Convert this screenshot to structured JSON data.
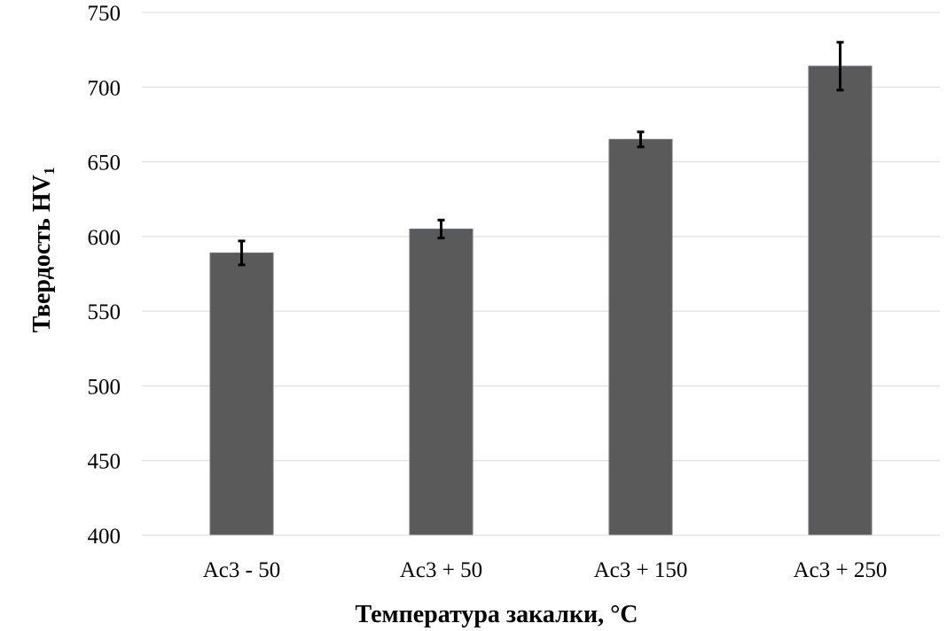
{
  "chart_data": {
    "type": "bar",
    "title": "",
    "xlabel": "Температура закалки, °C",
    "ylabel": "Твердость HV",
    "ylabel_subscript": "1",
    "categories": [
      "Ac3 - 50",
      "Ac3 + 50",
      "Ac3 + 150",
      "Ac3 + 250"
    ],
    "values": [
      589,
      605,
      665,
      714
    ],
    "errors": [
      8,
      6,
      5,
      16
    ],
    "ylim": [
      400,
      750
    ],
    "yticks": [
      400,
      450,
      500,
      550,
      600,
      650,
      700,
      750
    ],
    "grid": true,
    "legend": "none",
    "colors": {
      "bar": "#5a5a5a",
      "bar_edge": "#6b7078",
      "error_bar": "#000000",
      "grid": "#d9d9d9"
    }
  }
}
